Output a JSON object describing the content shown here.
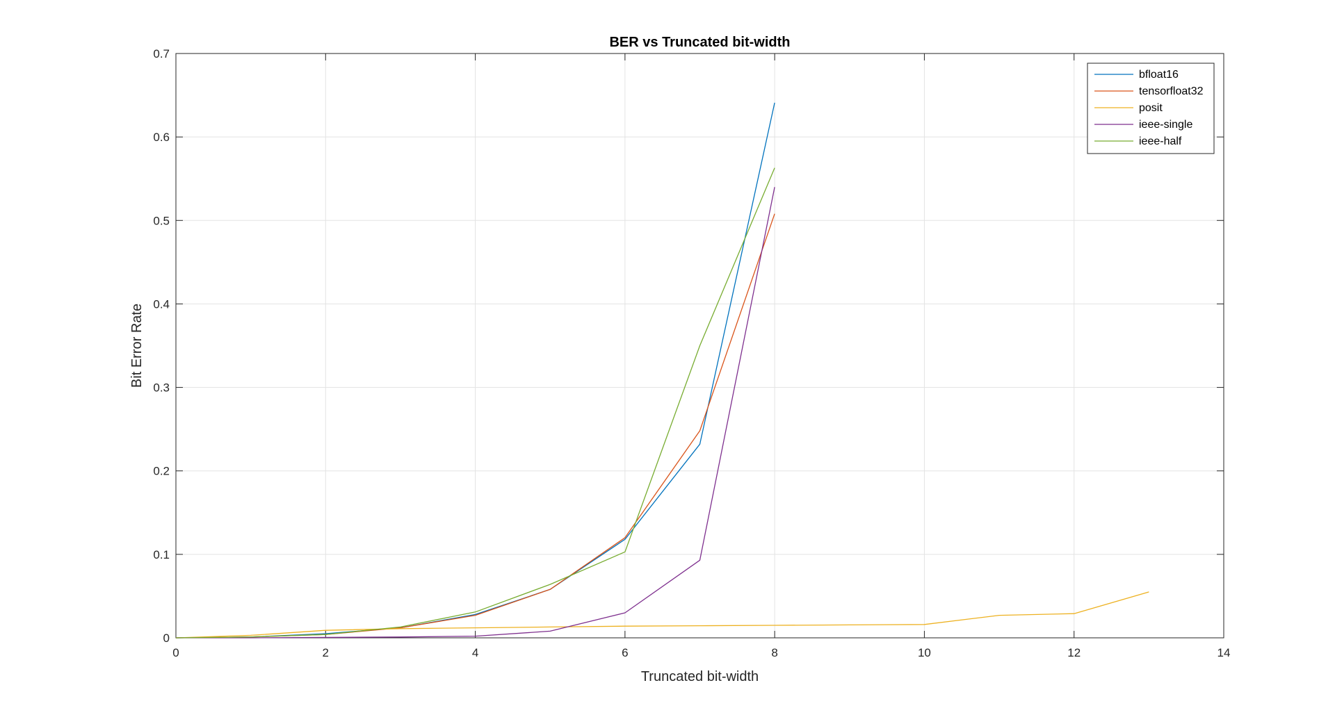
{
  "chart_data": {
    "type": "line",
    "title": "BER vs Truncated bit-width",
    "xlabel": "Truncated bit-width",
    "ylabel": "Bit Error Rate",
    "xlim": [
      0,
      14
    ],
    "ylim": [
      0,
      0.7
    ],
    "xticks": [
      0,
      2,
      4,
      6,
      8,
      10,
      12,
      14
    ],
    "yticks": [
      0,
      0.1,
      0.2,
      0.3,
      0.4,
      0.5,
      0.6,
      0.7
    ],
    "grid": true,
    "legend_position": "top-right",
    "series": [
      {
        "name": "bfloat16",
        "color": "#0072BD",
        "x": [
          0,
          1,
          2,
          3,
          4,
          5,
          6,
          7,
          8
        ],
        "y": [
          0,
          0.001,
          0.005,
          0.012,
          0.028,
          0.058,
          0.118,
          0.232,
          0.641
        ]
      },
      {
        "name": "tensorfloat32",
        "color": "#D95319",
        "x": [
          0,
          1,
          2,
          3,
          4,
          5,
          6,
          7,
          8
        ],
        "y": [
          0,
          0.001,
          0.004,
          0.012,
          0.027,
          0.058,
          0.12,
          0.248,
          0.508
        ]
      },
      {
        "name": "posit",
        "color": "#EDB120",
        "x": [
          0,
          1,
          2,
          3,
          4,
          5,
          6,
          7,
          8,
          9,
          10,
          11,
          12,
          13
        ],
        "y": [
          0,
          0.003,
          0.009,
          0.011,
          0.012,
          0.013,
          0.014,
          0.0145,
          0.015,
          0.0155,
          0.016,
          0.027,
          0.029,
          0.055
        ]
      },
      {
        "name": "ieee-single",
        "color": "#7E2F8E",
        "x": [
          0,
          1,
          2,
          3,
          4,
          5,
          6,
          7,
          8
        ],
        "y": [
          0,
          0,
          0.0005,
          0.001,
          0.002,
          0.008,
          0.03,
          0.093,
          0.54
        ]
      },
      {
        "name": "ieee-half",
        "color": "#77AC30",
        "x": [
          0,
          1,
          2,
          3,
          4,
          5,
          6,
          7,
          8
        ],
        "y": [
          0,
          0.001,
          0.004,
          0.013,
          0.031,
          0.064,
          0.103,
          0.35,
          0.563
        ]
      }
    ]
  }
}
